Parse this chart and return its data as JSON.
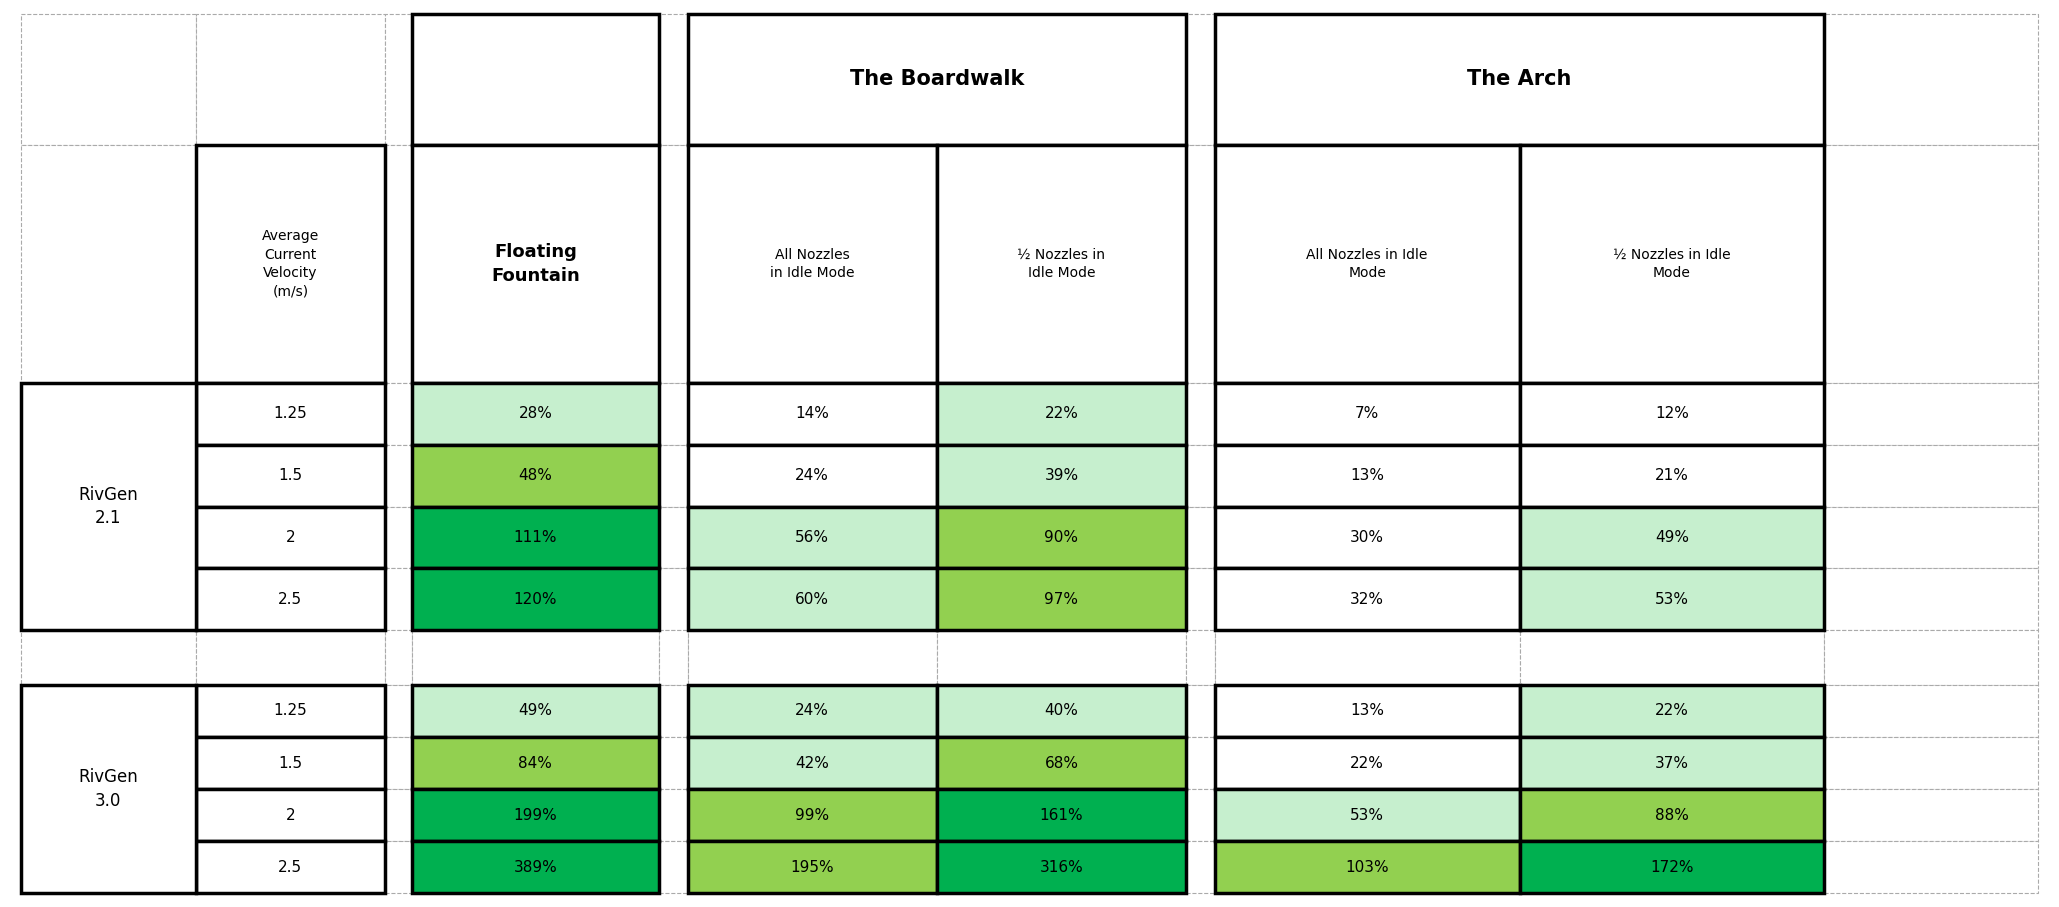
{
  "rivgen21_label": "RivGen\n2.1",
  "rivgen30_label": "RivGen\n3.0",
  "velocities": [
    "1.25",
    "1.5",
    "2",
    "2.5"
  ],
  "boardwalk_header": "The Boardwalk",
  "arch_header": "The Arch",
  "ff_header": "Floating\nFountain",
  "vel_header": "Average\nCurrent\nVelocity\n(m/s)",
  "bw_all_header": "All Nozzles\nin Idle Mode",
  "bw_half_header": "½ Nozzles in\nIdle Mode",
  "arch_all_header": "All Nozzles in Idle\nMode",
  "arch_half_header": "½ Nozzles in Idle\nMode",
  "data": {
    "rivgen21": {
      "floating_fountain": [
        "28%",
        "48%",
        "111%",
        "120%"
      ],
      "boardwalk_all": [
        "14%",
        "24%",
        "56%",
        "60%"
      ],
      "boardwalk_half": [
        "22%",
        "39%",
        "90%",
        "97%"
      ],
      "arch_all": [
        "7%",
        "13%",
        "30%",
        "32%"
      ],
      "arch_half": [
        "12%",
        "21%",
        "49%",
        "53%"
      ]
    },
    "rivgen30": {
      "floating_fountain": [
        "49%",
        "84%",
        "199%",
        "389%"
      ],
      "boardwalk_all": [
        "24%",
        "42%",
        "99%",
        "195%"
      ],
      "boardwalk_half": [
        "40%",
        "68%",
        "161%",
        "316%"
      ],
      "arch_all": [
        "13%",
        "22%",
        "53%",
        "103%"
      ],
      "arch_half": [
        "22%",
        "37%",
        "88%",
        "172%"
      ]
    }
  },
  "colors": {
    "rivgen21": {
      "floating_fountain": [
        "#c6efce",
        "#92d050",
        "#00b050",
        "#00b050"
      ],
      "boardwalk_all": [
        "#ffffff",
        "#ffffff",
        "#c6efce",
        "#c6efce"
      ],
      "boardwalk_half": [
        "#c6efce",
        "#c6efce",
        "#92d050",
        "#92d050"
      ],
      "arch_all": [
        "#ffffff",
        "#ffffff",
        "#ffffff",
        "#ffffff"
      ],
      "arch_half": [
        "#ffffff",
        "#ffffff",
        "#c6efce",
        "#c6efce"
      ]
    },
    "rivgen30": {
      "floating_fountain": [
        "#c6efce",
        "#92d050",
        "#00b050",
        "#00b050"
      ],
      "boardwalk_all": [
        "#c6efce",
        "#c6efce",
        "#92d050",
        "#92d050"
      ],
      "boardwalk_half": [
        "#c6efce",
        "#92d050",
        "#00b050",
        "#00b050"
      ],
      "arch_all": [
        "#ffffff",
        "#ffffff",
        "#c6efce",
        "#92d050"
      ],
      "arch_half": [
        "#c6efce",
        "#c6efce",
        "#92d050",
        "#00b050"
      ]
    }
  }
}
